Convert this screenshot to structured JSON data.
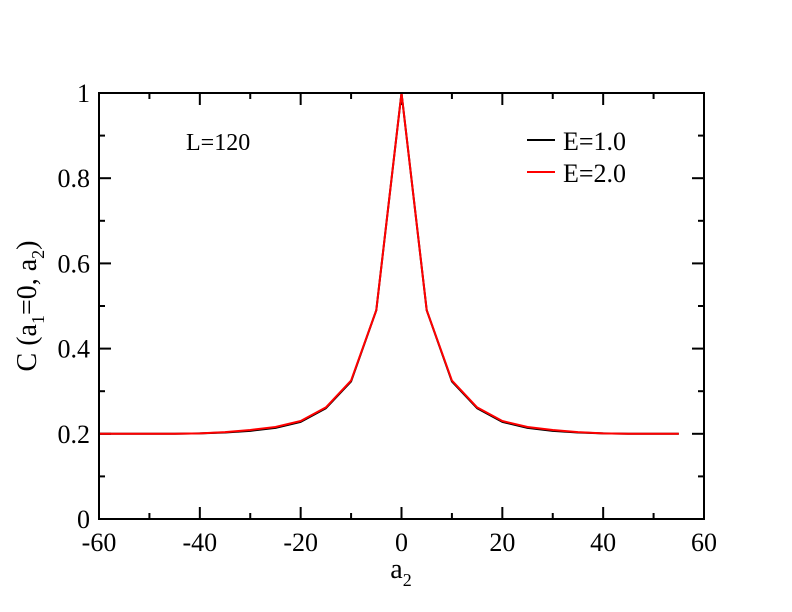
{
  "chart_data": {
    "type": "line",
    "title": "",
    "annotation": "L=120",
    "xlabel": {
      "main": "a",
      "sub": "2"
    },
    "ylabel": {
      "p1": "C (a",
      "s1": "1",
      "p2": "=0, a",
      "s2": "2",
      "p3": ")"
    },
    "xlim": [
      -60,
      60
    ],
    "ylim": [
      0,
      1
    ],
    "xticks": [
      "-60",
      "-40",
      "-20",
      "0",
      "20",
      "40",
      "60"
    ],
    "yticks": [
      "0",
      "0.2",
      "0.4",
      "0.6",
      "0.8",
      "1"
    ],
    "legend_position": "top-right",
    "series": [
      {
        "name": "E=1.0",
        "color": "#000000",
        "x": [
          -60,
          -55,
          -50,
          -45,
          -40,
          -35,
          -30,
          -25,
          -20,
          -15,
          -10,
          -5,
          0,
          5,
          10,
          15,
          20,
          25,
          30,
          35,
          40,
          45,
          50,
          55
        ],
        "y": [
          0.2,
          0.2,
          0.2,
          0.2,
          0.201,
          0.203,
          0.207,
          0.214,
          0.228,
          0.26,
          0.323,
          0.49,
          1.0,
          0.49,
          0.323,
          0.26,
          0.228,
          0.214,
          0.207,
          0.203,
          0.201,
          0.2,
          0.2,
          0.2
        ]
      },
      {
        "name": "E=2.0",
        "color": "#ff0000",
        "x": [
          -60,
          -55,
          -50,
          -45,
          -40,
          -35,
          -30,
          -25,
          -20,
          -15,
          -10,
          -5,
          0,
          5,
          10,
          15,
          20,
          25,
          30,
          35,
          40,
          45,
          50,
          55
        ],
        "y": [
          0.2,
          0.2,
          0.2,
          0.2,
          0.201,
          0.204,
          0.209,
          0.216,
          0.23,
          0.262,
          0.325,
          0.49,
          1.0,
          0.49,
          0.325,
          0.262,
          0.23,
          0.216,
          0.209,
          0.204,
          0.201,
          0.2,
          0.2,
          0.2
        ]
      }
    ]
  }
}
